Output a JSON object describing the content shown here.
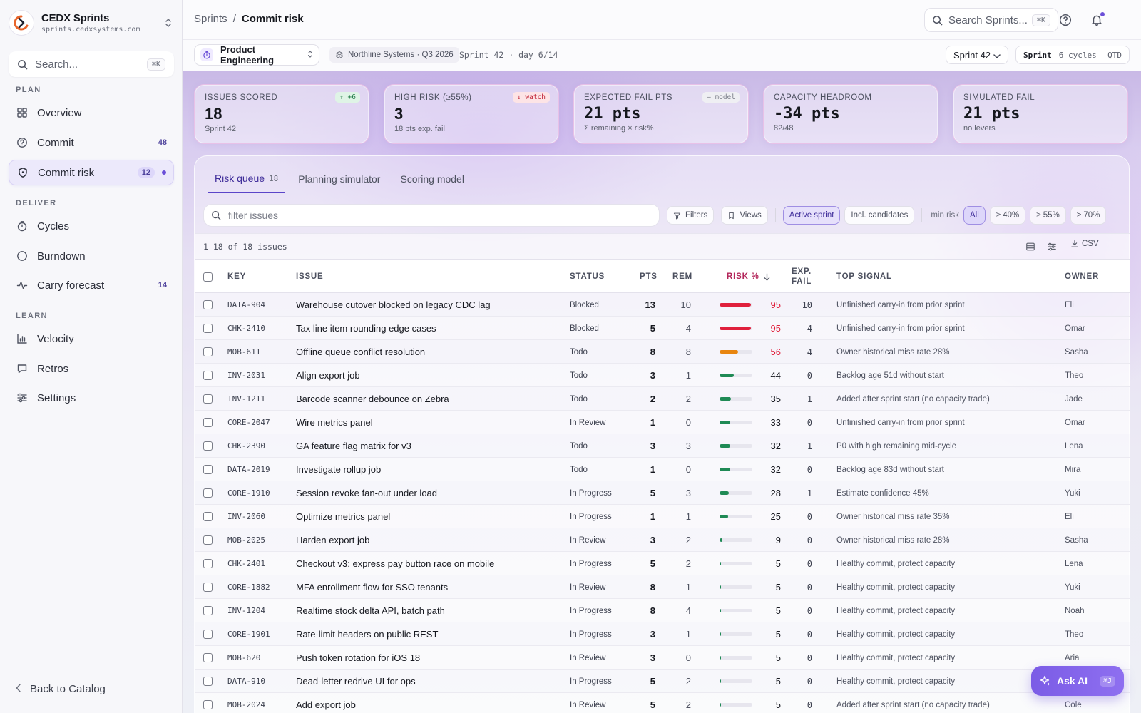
{
  "brand": {
    "name": "CEDX Sprints",
    "url": "sprints.cedxsystems.com"
  },
  "sidebar": {
    "search_placeholder": "Search...",
    "search_kbd": "⌘K",
    "sections": {
      "plan": "PLAN",
      "deliver": "DELIVER",
      "learn": "LEARN"
    },
    "items": [
      {
        "label": "Overview",
        "count": "",
        "icon": "grid-icon"
      },
      {
        "label": "Commit",
        "count": "48",
        "icon": "help-circle-icon"
      },
      {
        "label": "Commit risk",
        "count": "12",
        "icon": "shield-icon"
      },
      {
        "label": "Cycles",
        "count": "",
        "icon": "timer-icon"
      },
      {
        "label": "Burndown",
        "count": "",
        "icon": "circle-icon"
      },
      {
        "label": "Carry forecast",
        "count": "14",
        "icon": "activity-icon"
      },
      {
        "label": "Velocity",
        "count": "",
        "icon": "bar-chart-icon"
      },
      {
        "label": "Retros",
        "count": "",
        "icon": "message-icon"
      },
      {
        "label": "Settings",
        "count": "",
        "icon": "sliders-icon"
      }
    ],
    "back_label": "Back to Catalog"
  },
  "header": {
    "crumb_root": "Sprints",
    "crumb_sep": "/",
    "crumb_current": "Commit risk",
    "search_placeholder": "Search Sprints...",
    "search_kbd": "⌘K"
  },
  "subbar": {
    "team": "Product Engineering",
    "org": "Northline Systems · Q3 2026",
    "sprint_day": "Sprint 42 · day 6/14",
    "sprint_select": "Sprint 42",
    "cycle_label": "Sprint",
    "cycle_count": "6 cycles",
    "cycle_range": "QTD"
  },
  "kpis": [
    {
      "label": "ISSUES SCORED",
      "value": "18",
      "sub": "Sprint 42",
      "badge": "↑ +6",
      "badge_kind": "up"
    },
    {
      "label": "HIGH RISK (≥55%)",
      "value": "3",
      "sub": "18 pts exp. fail",
      "badge": "↓ watch",
      "badge_kind": "watch"
    },
    {
      "label": "EXPECTED FAIL PTS",
      "value": "21 pts",
      "sub": "Σ remaining × risk%",
      "badge": "— model",
      "badge_kind": "model"
    },
    {
      "label": "CAPACITY HEADROOM",
      "value": "-34 pts",
      "sub": "82/48",
      "badge": "",
      "badge_kind": ""
    },
    {
      "label": "SIMULATED FAIL",
      "value": "21 pts",
      "sub": "no levers",
      "badge": "",
      "badge_kind": ""
    }
  ],
  "tabs": [
    {
      "label": "Risk queue",
      "count": "18"
    },
    {
      "label": "Planning simulator",
      "count": ""
    },
    {
      "label": "Scoring model",
      "count": ""
    }
  ],
  "toolbar": {
    "filter_placeholder": "filter issues",
    "filters": "Filters",
    "views": "Views",
    "active_sprint": "Active sprint",
    "incl_candidates": "Incl. candidates",
    "min_risk": "min risk",
    "chips": [
      "All",
      "≥ 40%",
      "≥ 55%",
      "≥ 70%"
    ]
  },
  "count_text": "1–18 of 18 issues",
  "csv_label": "CSV",
  "columns": {
    "key": "KEY",
    "issue": "ISSUE",
    "status": "STATUS",
    "pts": "PTS",
    "rem": "REM",
    "risk": "RISK %",
    "exp1": "EXP.",
    "exp2": "FAIL",
    "signal": "TOP SIGNAL",
    "owner": "OWNER"
  },
  "rows": [
    {
      "key": "DATA-904",
      "issue": "Warehouse cutover blocked on legacy CDC lag",
      "status": "Blocked",
      "pts": 13,
      "rem": 10,
      "risk": 95,
      "exp": "10",
      "signal": "Unfinished carry-in from prior sprint",
      "owner": "Eli"
    },
    {
      "key": "CHK-2410",
      "issue": "Tax line item rounding edge cases",
      "status": "Blocked",
      "pts": 5,
      "rem": 4,
      "risk": 95,
      "exp": "4",
      "signal": "Unfinished carry-in from prior sprint",
      "owner": "Omar"
    },
    {
      "key": "MOB-611",
      "issue": "Offline queue conflict resolution",
      "status": "Todo",
      "pts": 8,
      "rem": 8,
      "risk": 56,
      "exp": "4",
      "signal": "Owner historical miss rate 28%",
      "owner": "Sasha"
    },
    {
      "key": "INV-2031",
      "issue": "Align export job",
      "status": "Todo",
      "pts": 3,
      "rem": 1,
      "risk": 44,
      "exp": "0",
      "signal": "Backlog age 51d without start",
      "owner": "Theo"
    },
    {
      "key": "INV-1211",
      "issue": "Barcode scanner debounce on Zebra",
      "status": "Todo",
      "pts": 2,
      "rem": 2,
      "risk": 35,
      "exp": "1",
      "signal": "Added after sprint start (no capacity trade)",
      "owner": "Jade"
    },
    {
      "key": "CORE-2047",
      "issue": "Wire metrics panel",
      "status": "In Review",
      "pts": 1,
      "rem": 0,
      "risk": 33,
      "exp": "0",
      "signal": "Unfinished carry-in from prior sprint",
      "owner": "Omar"
    },
    {
      "key": "CHK-2390",
      "issue": "GA feature flag matrix for v3",
      "status": "Todo",
      "pts": 3,
      "rem": 3,
      "risk": 32,
      "exp": "1",
      "signal": "P0 with high remaining mid-cycle",
      "owner": "Lena"
    },
    {
      "key": "DATA-2019",
      "issue": "Investigate rollup job",
      "status": "Todo",
      "pts": 1,
      "rem": 0,
      "risk": 32,
      "exp": "0",
      "signal": "Backlog age 83d without start",
      "owner": "Mira"
    },
    {
      "key": "CORE-1910",
      "issue": "Session revoke fan-out under load",
      "status": "In Progress",
      "pts": 5,
      "rem": 3,
      "risk": 28,
      "exp": "1",
      "signal": "Estimate confidence 45%",
      "owner": "Yuki"
    },
    {
      "key": "INV-2060",
      "issue": "Optimize metrics panel",
      "status": "In Progress",
      "pts": 1,
      "rem": 1,
      "risk": 25,
      "exp": "0",
      "signal": "Owner historical miss rate 35%",
      "owner": "Eli"
    },
    {
      "key": "MOB-2025",
      "issue": "Harden export job",
      "status": "In Review",
      "pts": 3,
      "rem": 2,
      "risk": 9,
      "exp": "0",
      "signal": "Owner historical miss rate 28%",
      "owner": "Sasha"
    },
    {
      "key": "CHK-2401",
      "issue": "Checkout v3: express pay button race on mobile",
      "status": "In Progress",
      "pts": 5,
      "rem": 2,
      "risk": 5,
      "exp": "0",
      "signal": "Healthy commit, protect capacity",
      "owner": "Lena"
    },
    {
      "key": "CORE-1882",
      "issue": "MFA enrollment flow for SSO tenants",
      "status": "In Review",
      "pts": 8,
      "rem": 1,
      "risk": 5,
      "exp": "0",
      "signal": "Healthy commit, protect capacity",
      "owner": "Yuki"
    },
    {
      "key": "INV-1204",
      "issue": "Realtime stock delta API, batch path",
      "status": "In Progress",
      "pts": 8,
      "rem": 4,
      "risk": 5,
      "exp": "0",
      "signal": "Healthy commit, protect capacity",
      "owner": "Noah"
    },
    {
      "key": "CORE-1901",
      "issue": "Rate-limit headers on public REST",
      "status": "In Progress",
      "pts": 3,
      "rem": 1,
      "risk": 5,
      "exp": "0",
      "signal": "Healthy commit, protect capacity",
      "owner": "Theo"
    },
    {
      "key": "MOB-620",
      "issue": "Push token rotation for iOS 18",
      "status": "In Review",
      "pts": 3,
      "rem": 0,
      "risk": 5,
      "exp": "0",
      "signal": "Healthy commit, protect capacity",
      "owner": "Aria"
    },
    {
      "key": "DATA-910",
      "issue": "Dead-letter redrive UI for ops",
      "status": "In Progress",
      "pts": 5,
      "rem": 2,
      "risk": 5,
      "exp": "0",
      "signal": "Healthy commit, protect capacity",
      "owner": ""
    },
    {
      "key": "MOB-2024",
      "issue": "Add export job",
      "status": "In Review",
      "pts": 5,
      "rem": 2,
      "risk": 5,
      "exp": "0",
      "signal": "Added after sprint start (no capacity trade)",
      "owner": "Cole"
    }
  ],
  "ask_ai": {
    "label": "Ask AI",
    "kbd": "⌘J"
  },
  "colors": {
    "accent": "#5b45c9",
    "risk_high": "#e0203c",
    "risk_mid": "#e8850f",
    "risk_low": "#1f8a55"
  }
}
